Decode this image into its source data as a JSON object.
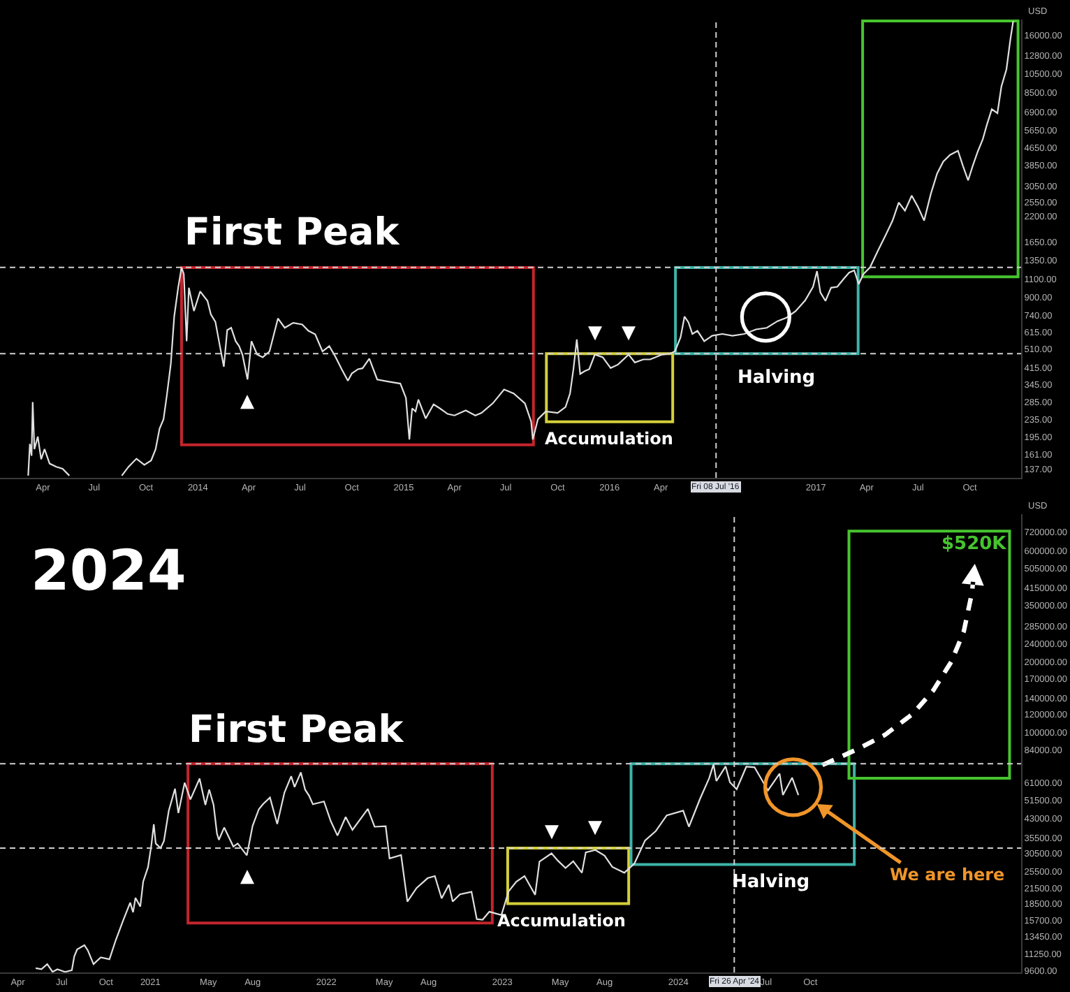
{
  "chart_data": [
    {
      "type": "line",
      "ylabel": "USD",
      "series": [
        {
          "color": "#e0e0e0",
          "x": [
            "2013-03-06",
            "2013-03-09",
            "2013-03-12",
            "2013-03-14",
            "2013-03-17",
            "2013-03-23",
            "2013-03-29",
            "2013-04-04",
            "2013-04-13",
            "2013-04-25",
            "2013-05-06",
            "2013-05-18",
            "2013-07-01",
            "2013-08-19",
            "2013-08-31",
            "2013-09-14",
            "2013-09-28",
            "2013-10-10",
            "2013-10-18",
            "2013-10-25",
            "2013-11-01",
            "2013-11-07",
            "2013-11-14",
            "2013-11-20",
            "2013-11-27",
            "2013-12-03",
            "2013-12-07",
            "2013-12-12",
            "2013-12-16",
            "2013-12-25",
            "2014-01-05",
            "2014-01-18",
            "2014-01-24",
            "2014-02-01",
            "2014-02-09",
            "2014-02-16",
            "2014-02-22",
            "2014-03-01",
            "2014-03-09",
            "2014-03-15",
            "2014-03-21",
            "2014-03-30",
            "2014-04-06",
            "2014-04-16",
            "2014-04-26",
            "2014-05-08",
            "2014-05-23",
            "2014-06-04",
            "2014-06-19",
            "2014-07-05",
            "2014-07-16",
            "2014-07-28",
            "2014-08-10",
            "2014-08-22",
            "2014-09-01",
            "2014-09-13",
            "2014-09-24",
            "2014-10-01",
            "2014-10-12",
            "2014-10-20",
            "2014-11-01",
            "2014-11-15",
            "2014-12-04",
            "2014-12-26",
            "2015-01-05",
            "2015-01-11",
            "2015-01-16",
            "2015-01-22",
            "2015-01-27",
            "2015-02-09",
            "2015-02-23",
            "2015-03-06",
            "2015-03-20",
            "2015-04-01",
            "2015-04-21",
            "2015-05-08",
            "2015-05-19",
            "2015-06-08",
            "2015-06-28",
            "2015-07-15",
            "2015-08-04",
            "2015-08-15",
            "2015-08-18",
            "2015-08-27",
            "2015-09-10",
            "2015-10-01",
            "2015-10-15",
            "2015-10-23",
            "2015-10-29",
            "2015-11-04",
            "2015-11-10",
            "2015-11-18",
            "2015-11-26",
            "2015-12-06",
            "2015-12-20",
            "2016-01-03",
            "2016-01-16",
            "2016-02-04",
            "2016-02-15",
            "2016-03-01",
            "2016-03-13",
            "2016-03-26",
            "2016-04-03",
            "2016-04-17",
            "2016-04-26",
            "2016-05-06",
            "2016-05-13",
            "2016-05-20",
            "2016-05-27",
            "2016-06-05",
            "2016-06-17",
            "2016-07-01",
            "2016-07-19",
            "2016-08-06",
            "2016-08-27",
            "2016-09-17",
            "2016-10-06",
            "2016-10-25",
            "2016-11-10",
            "2016-11-26",
            "2016-12-13",
            "2016-12-27",
            "2017-01-03",
            "2017-01-09",
            "2017-01-18",
            "2017-01-28",
            "2017-02-08",
            "2017-02-19",
            "2017-03-01",
            "2017-03-10",
            "2017-03-18",
            "2017-03-26",
            "2017-04-07",
            "2017-04-21",
            "2017-05-06",
            "2017-05-17",
            "2017-05-28",
            "2017-06-08",
            "2017-06-20",
            "2017-07-01",
            "2017-07-12",
            "2017-07-24",
            "2017-08-04",
            "2017-08-15",
            "2017-08-27",
            "2017-09-10",
            "2017-09-19",
            "2017-09-28",
            "2017-10-06",
            "2017-10-15",
            "2017-10-24",
            "2017-10-31",
            "2017-11-09",
            "2017-11-19",
            "2017-11-26",
            "2017-12-05",
            "2017-12-12",
            "2017-12-17"
          ],
          "values": [
            127,
            180,
            158,
            285,
            170,
            195,
            152,
            170,
            145,
            140,
            137,
            127,
            null,
            127,
            140,
            153,
            143,
            150,
            170,
            213,
            236,
            308,
            434,
            730,
            1000,
            1250,
            1160,
            556,
            1000,
            774,
            960,
            865,
            746,
            688,
            527,
            420,
            628,
            644,
            556,
            527,
            480,
            365,
            556,
            480,
            466,
            497,
            714,
            644,
            680,
            668,
            623,
            600,
            497,
            527,
            474,
            409,
            360,
            390,
            409,
            413,
            459,
            365,
            357,
            349,
            298,
            189,
            266,
            257,
            293,
            238,
            278,
            266,
            250,
            246,
            260,
            246,
            253,
            281,
            327,
            313,
            281,
            230,
            189,
            236,
            257,
            253,
            270,
            313,
            409,
            567,
            388,
            400,
            409,
            480,
            466,
            414,
            430,
            480,
            440,
            455,
            455,
            470,
            480,
            485,
            497,
            580,
            728,
            684,
            602,
            623,
            556,
            590,
            602,
            590,
            602,
            633,
            644,
            693,
            720,
            773,
            870,
            1010,
            1200,
            950,
            865,
            1000,
            1010,
            1100,
            1180,
            1210,
            1040,
            1160,
            1250,
            1500,
            1810,
            2090,
            2550,
            2330,
            2750,
            2430,
            2090,
            2810,
            3500,
            4000,
            4300,
            4500,
            3800,
            3250,
            3800,
            4450,
            5100,
            5950,
            7100,
            6800,
            9100,
            11000,
            15300,
            18700
          ]
        }
      ],
      "xlim": [
        "2013-01-15",
        "2017-12-31"
      ],
      "xticks": [
        {
          "value": "2013-04-01",
          "label": "Apr"
        },
        {
          "value": "2013-07-01",
          "label": "Jul"
        },
        {
          "value": "2013-10-01",
          "label": "Oct"
        },
        {
          "value": "2014-01-01",
          "label": "2014"
        },
        {
          "value": "2014-04-01",
          "label": "Apr"
        },
        {
          "value": "2014-07-01",
          "label": "Jul"
        },
        {
          "value": "2014-10-01",
          "label": "Oct"
        },
        {
          "value": "2015-01-01",
          "label": "2015"
        },
        {
          "value": "2015-04-01",
          "label": "Apr"
        },
        {
          "value": "2015-07-01",
          "label": "Jul"
        },
        {
          "value": "2015-10-01",
          "label": "Oct"
        },
        {
          "value": "2016-01-01",
          "label": "2016"
        },
        {
          "value": "2016-04-01",
          "label": "Apr"
        },
        {
          "value": "2017-01-01",
          "label": "2017"
        },
        {
          "value": "2017-04-01",
          "label": "Apr"
        },
        {
          "value": "2017-07-01",
          "label": "Jul"
        },
        {
          "value": "2017-10-01",
          "label": "Oct"
        }
      ],
      "ylim": [
        124,
        19000
      ],
      "yticks": [
        {
          "value": 137,
          "label": "137.00"
        },
        {
          "value": 161,
          "label": "161.00"
        },
        {
          "value": 195,
          "label": "195.00"
        },
        {
          "value": 235,
          "label": "235.00"
        },
        {
          "value": 285,
          "label": "285.00"
        },
        {
          "value": 345,
          "label": "345.00"
        },
        {
          "value": 415,
          "label": "415.00"
        },
        {
          "value": 510,
          "label": "510.00"
        },
        {
          "value": 615,
          "label": "615.00"
        },
        {
          "value": 740,
          "label": "740.00"
        },
        {
          "value": 900,
          "label": "900.00"
        },
        {
          "value": 1100,
          "label": "1100.00"
        },
        {
          "value": 1350,
          "label": "1350.00"
        },
        {
          "value": 1650,
          "label": "1650.00"
        },
        {
          "value": 2200,
          "label": "2200.00"
        },
        {
          "value": 2550,
          "label": "2550.00"
        },
        {
          "value": 3050,
          "label": "3050.00"
        },
        {
          "value": 3850,
          "label": "3850.00"
        },
        {
          "value": 4650,
          "label": "4650.00"
        },
        {
          "value": 5650,
          "label": "5650.00"
        },
        {
          "value": 6900,
          "label": "6900.00"
        },
        {
          "value": 8500,
          "label": "8500.00"
        },
        {
          "value": 10500,
          "label": "10500.00"
        },
        {
          "value": 12800,
          "label": "12800.00"
        },
        {
          "value": 16000,
          "label": "16000.00"
        }
      ],
      "log": "y",
      "ref_lines": [
        {
          "axis": "y",
          "value": 1250,
          "label": "First Peak",
          "line_style": "dashed"
        },
        {
          "axis": "y",
          "value": 485,
          "line_style": "dashed"
        },
        {
          "axis": "x",
          "value": "2016-07-08",
          "label": "Fri 08 Jul '16",
          "line_style": "dashed"
        }
      ],
      "annotations": [
        {
          "text": "▲",
          "x": "2014-03-30",
          "y": 365
        },
        {
          "text": "▼",
          "x": "2015-12-06",
          "y": 480
        },
        {
          "text": "▼",
          "x": "2016-02-04",
          "y": 480
        },
        "Accumulation",
        "Halving"
      ]
    },
    {
      "type": "line",
      "title": "2024",
      "ylabel": "USD",
      "series": [
        {
          "color": "#e0e0e0",
          "x": [
            "2020-05-08",
            "2020-05-20",
            "2020-06-01",
            "2020-06-12",
            "2020-06-22",
            "2020-07-08",
            "2020-07-22",
            "2020-07-27",
            "2020-08-02",
            "2020-08-17",
            "2020-08-24",
            "2020-09-05",
            "2020-09-20",
            "2020-10-08",
            "2020-10-21",
            "2020-11-05",
            "2020-11-20",
            "2020-11-26",
            "2020-12-01",
            "2020-12-11",
            "2020-12-17",
            "2020-12-27",
            "2021-01-03",
            "2021-01-08",
            "2021-01-12",
            "2021-01-22",
            "2021-01-29",
            "2021-02-08",
            "2021-02-21",
            "2021-02-28",
            "2021-03-13",
            "2021-03-25",
            "2021-04-13",
            "2021-04-25",
            "2021-05-03",
            "2021-05-12",
            "2021-05-19",
            "2021-05-23",
            "2021-06-03",
            "2021-06-22",
            "2021-07-01",
            "2021-07-20",
            "2021-08-01",
            "2021-08-14",
            "2021-08-23",
            "2021-09-06",
            "2021-09-21",
            "2021-10-06",
            "2021-10-20",
            "2021-10-27",
            "2021-11-09",
            "2021-11-18",
            "2021-11-26",
            "2021-12-04",
            "2021-12-27",
            "2022-01-10",
            "2022-01-24",
            "2022-02-10",
            "2022-02-24",
            "2022-03-28",
            "2022-04-11",
            "2022-05-04",
            "2022-05-12",
            "2022-06-05",
            "2022-06-18",
            "2022-07-07",
            "2022-07-30",
            "2022-08-14",
            "2022-08-28",
            "2022-09-12",
            "2022-09-20",
            "2022-10-05",
            "2022-10-29",
            "2022-11-09",
            "2022-11-21",
            "2022-12-05",
            "2022-12-30",
            "2023-01-14",
            "2023-01-30",
            "2023-02-16",
            "2023-03-10",
            "2023-03-19",
            "2023-04-13",
            "2023-04-26",
            "2023-05-12",
            "2023-05-28",
            "2023-06-15",
            "2023-06-23",
            "2023-07-13",
            "2023-08-01",
            "2023-08-17",
            "2023-09-11",
            "2023-10-02",
            "2023-10-24",
            "2023-11-15",
            "2023-12-08",
            "2024-01-11",
            "2024-01-23",
            "2024-02-15",
            "2024-03-05",
            "2024-03-14",
            "2024-03-20",
            "2024-04-08",
            "2024-04-17",
            "2024-05-01",
            "2024-05-21",
            "2024-06-07",
            "2024-07-05",
            "2024-07-29",
            "2024-08-05",
            "2024-08-24",
            "2024-09-06"
          ],
          "values": [
            9800,
            9700,
            10200,
            9450,
            9700,
            9450,
            9600,
            11000,
            11800,
            12300,
            11700,
            10200,
            10900,
            10700,
            12900,
            15600,
            18700,
            17000,
            19600,
            18000,
            23000,
            26500,
            33000,
            40500,
            33500,
            32000,
            34300,
            46200,
            57500,
            45200,
            61000,
            51700,
            63500,
            49000,
            57000,
            49000,
            37000,
            34700,
            39200,
            32500,
            33500,
            29800,
            39900,
            47000,
            49500,
            52700,
            40600,
            55300,
            65000,
            58400,
            67500,
            56900,
            53700,
            49300,
            50700,
            41800,
            36200,
            43500,
            38300,
            47100,
            39500,
            39700,
            28900,
            29900,
            18900,
            21600,
            23800,
            24300,
            19500,
            22300,
            18900,
            20300,
            20800,
            15900,
            15800,
            17100,
            16550,
            20900,
            23000,
            24300,
            20200,
            28000,
            30400,
            28300,
            26300,
            28100,
            25100,
            30700,
            31400,
            29700,
            26600,
            25100,
            27500,
            34500,
            37800,
            44200,
            46300,
            39500,
            52000,
            63800,
            73100,
            62000,
            71600,
            61300,
            57200,
            71400,
            71000,
            56500,
            66700,
            54000,
            64100,
            54000
          ]
        }
      ],
      "xlim": [
        "2020-02-24",
        "2025-12-12"
      ],
      "xticks": [
        {
          "value": "2020-04-01",
          "label": "Apr"
        },
        {
          "value": "2020-07-01",
          "label": "Jul"
        },
        {
          "value": "2020-10-01",
          "label": "Oct"
        },
        {
          "value": "2021-01-01",
          "label": "2021"
        },
        {
          "value": "2021-05-01",
          "label": "May"
        },
        {
          "value": "2021-08-01",
          "label": "Aug"
        },
        {
          "value": "2022-01-01",
          "label": "2022"
        },
        {
          "value": "2022-05-01",
          "label": "May"
        },
        {
          "value": "2022-08-01",
          "label": "Aug"
        },
        {
          "value": "2023-01-01",
          "label": "2023"
        },
        {
          "value": "2023-05-01",
          "label": "May"
        },
        {
          "value": "2023-08-01",
          "label": "Aug"
        },
        {
          "value": "2024-01-01",
          "label": "2024"
        },
        {
          "value": "2024-07-01",
          "label": "Jul"
        },
        {
          "value": "2024-10-01",
          "label": "Oct"
        }
      ],
      "ylim": [
        9400,
        860000
      ],
      "yticks": [
        {
          "value": 9600,
          "label": "9600.00"
        },
        {
          "value": 11250,
          "label": "11250.00"
        },
        {
          "value": 13450,
          "label": "13450.00"
        },
        {
          "value": 15700,
          "label": "15700.00"
        },
        {
          "value": 18500,
          "label": "18500.00"
        },
        {
          "value": 21500,
          "label": "21500.00"
        },
        {
          "value": 25500,
          "label": "25500.00"
        },
        {
          "value": 30500,
          "label": "30500.00"
        },
        {
          "value": 35500,
          "label": "35500.00"
        },
        {
          "value": 43000,
          "label": "43000.00"
        },
        {
          "value": 51500,
          "label": "51500.00"
        },
        {
          "value": 61000,
          "label": "61000.00"
        },
        {
          "value": 84000,
          "label": "84000.00"
        },
        {
          "value": 100000,
          "label": "100000.00"
        },
        {
          "value": 120000,
          "label": "120000.00"
        },
        {
          "value": 140000,
          "label": "140000.00"
        },
        {
          "value": 170000,
          "label": "170000.00"
        },
        {
          "value": 200000,
          "label": "200000.00"
        },
        {
          "value": 240000,
          "label": "240000.00"
        },
        {
          "value": 285000,
          "label": "285000.00"
        },
        {
          "value": 350000,
          "label": "350000.00"
        },
        {
          "value": 415000,
          "label": "415000.00"
        },
        {
          "value": 505000,
          "label": "505000.00"
        },
        {
          "value": 600000,
          "label": "600000.00"
        },
        {
          "value": 720000,
          "label": "720000.00"
        }
      ],
      "log": "y",
      "ref_lines": [
        {
          "axis": "y",
          "value": 73500,
          "label": "First Peak",
          "line_style": "dashed"
        },
        {
          "axis": "y",
          "value": 32000,
          "line_style": "dashed"
        },
        {
          "axis": "x",
          "value": "2024-04-26",
          "label": "Fri 26 Apr '24",
          "line_style": "dashed"
        }
      ],
      "annotations": [
        {
          "text": "▲",
          "x": "2021-07-20",
          "y": 29800
        },
        {
          "text": "▼",
          "x": "2023-04-13",
          "y": 30400
        },
        {
          "text": "▼",
          "x": "2023-07-13",
          "y": 31400
        },
        "Accumulation",
        "Halving",
        "We are here",
        "$520K"
      ]
    }
  ]
}
